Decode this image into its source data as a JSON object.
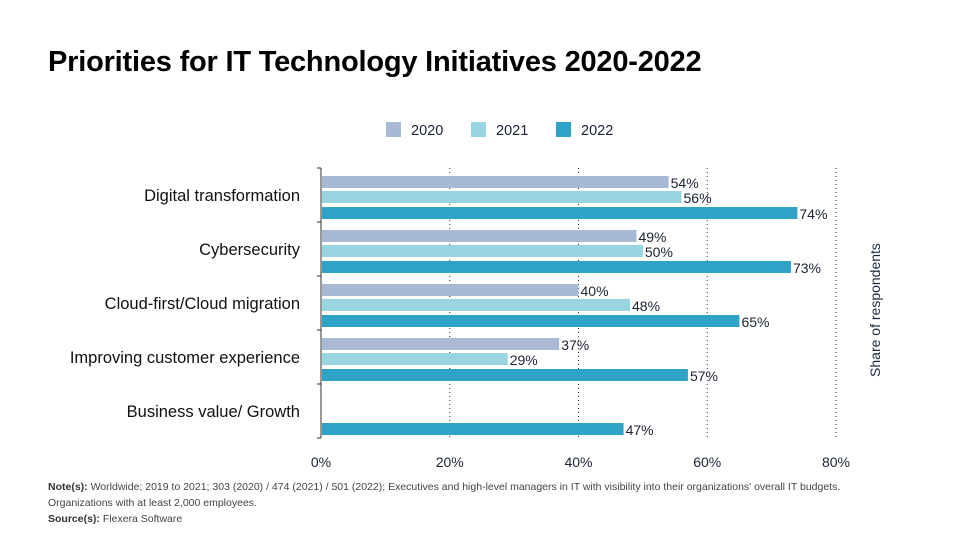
{
  "chart_data": {
    "type": "bar",
    "orientation": "horizontal",
    "title": "Priorities for IT Technology Initiatives 2020-2022",
    "categories": [
      "Digital transformation",
      "Cybersecurity",
      "Cloud-first/Cloud migration",
      "Improving customer experience",
      "Business value/ Growth"
    ],
    "series": [
      {
        "name": "2020",
        "color": "#a7b9d3",
        "values": [
          54,
          49,
          40,
          37,
          null
        ]
      },
      {
        "name": "2021",
        "color": "#99d4e1",
        "values": [
          56,
          50,
          48,
          29,
          null
        ]
      },
      {
        "name": "2022",
        "color": "#2fa3c5",
        "values": [
          74,
          73,
          65,
          57,
          47
        ]
      }
    ],
    "xlim": [
      0,
      80
    ],
    "xticks": [
      "0%",
      "20%",
      "40%",
      "60%",
      "80%"
    ],
    "value_suffix": "%",
    "ylabel": "Share of respondents",
    "grid": "vertical dotted",
    "legend": "top-center"
  },
  "notes": {
    "note_label": "Note(s):",
    "note_text": " Worldwide; 2019 to 2021; 303 (2020) / 474 (2021) / 501 (2022); Executives and high-level managers in IT with visibility into their organizations' overall IT budgets. Organizations with at least 2,000 employees.",
    "source_label": "Source(s):",
    "source_text": " Flexera Software"
  }
}
